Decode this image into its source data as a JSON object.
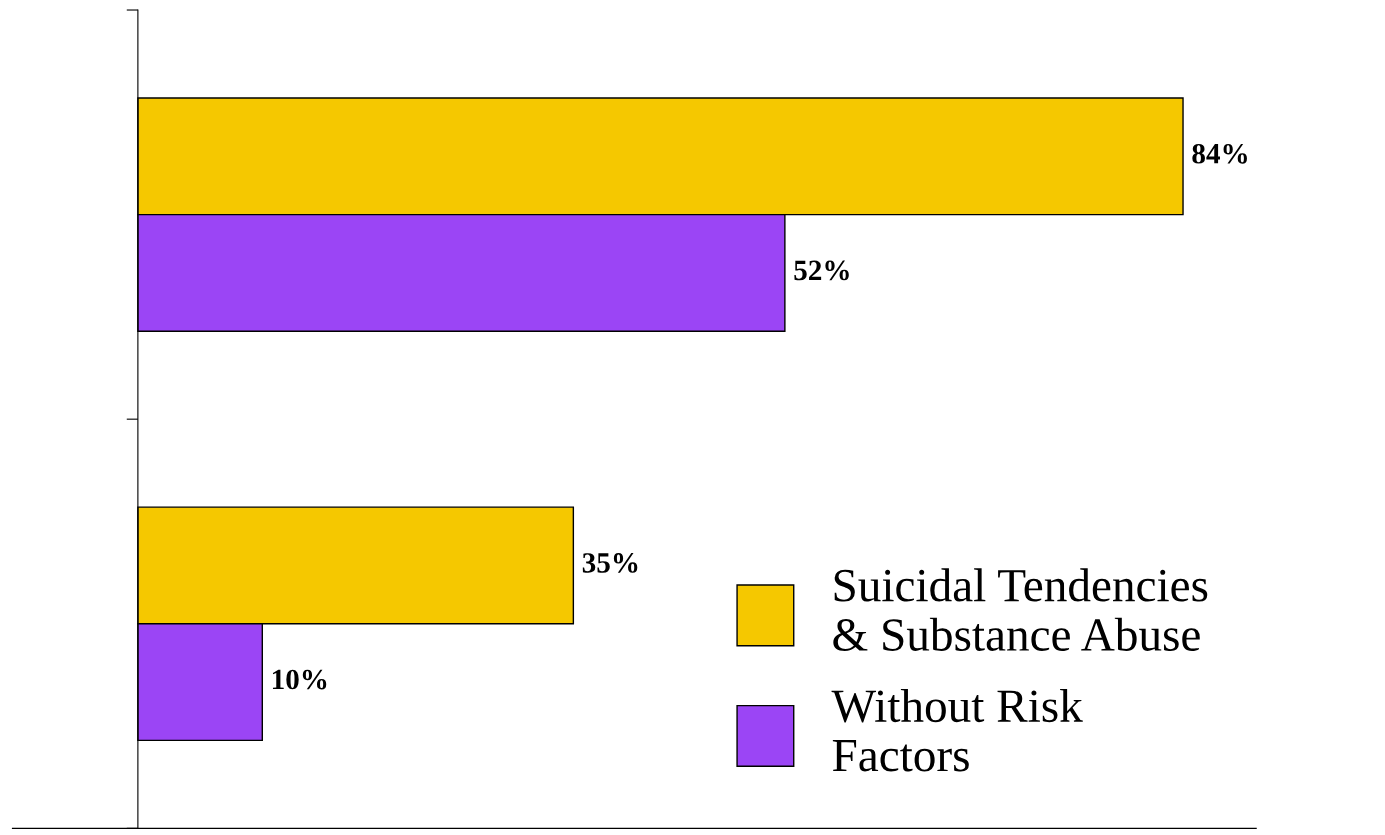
{
  "chart_data": {
    "type": "bar",
    "orientation": "horizontal",
    "categories": [
      null,
      null
    ],
    "series": [
      {
        "name": "Suicidal Tendencies\n& Substance Abuse",
        "color": "#f5c800",
        "values": [
          84,
          35
        ],
        "value_labels": [
          "84%",
          "35%"
        ]
      },
      {
        "name": "Without Risk\nFactors",
        "color": "#9b45f5",
        "values": [
          52,
          10
        ],
        "value_labels": [
          "52%",
          "10%"
        ]
      }
    ],
    "grid": false,
    "legend": "bottom right"
  }
}
